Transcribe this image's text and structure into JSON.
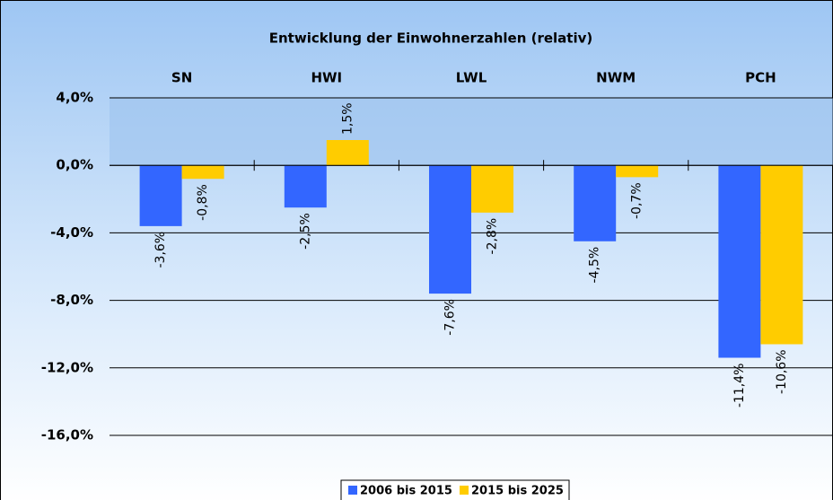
{
  "chart_data": {
    "type": "bar",
    "title": "Entwicklung der Einwohnerzahlen (relativ)",
    "categories": [
      "SN",
      "HWI",
      "LWL",
      "NWM",
      "PCH"
    ],
    "series": [
      {
        "name": "2006 bis 2015",
        "color": "#3366ff",
        "values": [
          -3.6,
          -2.5,
          -7.6,
          -4.5,
          -11.4
        ],
        "value_labels": [
          "-3,6%",
          "-2,5%",
          "-7,6%",
          "-4,5%",
          "-11,4%"
        ]
      },
      {
        "name": "2015 bis 2025",
        "color": "#ffcc00",
        "values": [
          -0.8,
          1.5,
          -2.8,
          -0.7,
          -10.6
        ],
        "value_labels": [
          "-0,8%",
          "1,5%",
          "-2,8%",
          "-0,7%",
          "-10,6%"
        ]
      }
    ],
    "ylim": [
      -16,
      4
    ],
    "yticks": [
      {
        "value": 4,
        "label": "4,0%"
      },
      {
        "value": 0,
        "label": "0,0%"
      },
      {
        "value": -4,
        "label": "-4,0%"
      },
      {
        "value": -8,
        "label": "-8,0%"
      },
      {
        "value": -12,
        "label": "-12,0%"
      },
      {
        "value": -16,
        "label": "-16,0%"
      }
    ],
    "grid": true,
    "legend": "bottom"
  }
}
